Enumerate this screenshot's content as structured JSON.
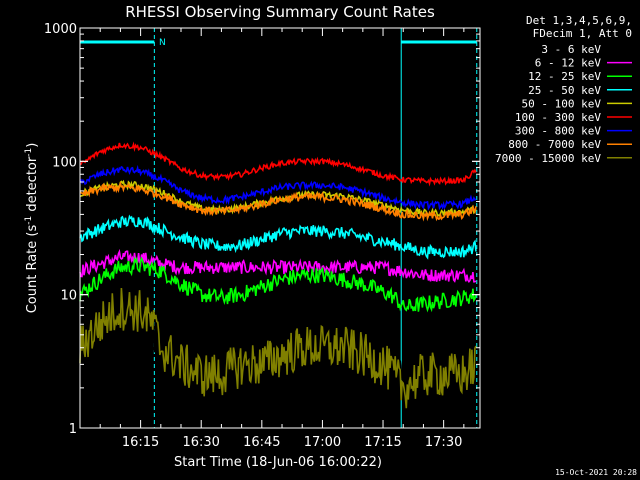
{
  "chart_data": {
    "type": "line",
    "title": "RHESSI Observing Summary Count Rates",
    "xlabel": "Start Time (18-Jun-06 16:00:22)",
    "ylabel_main": "Count Rate (s",
    "ylabel_sup1": "-1",
    "ylabel_mid": " detector",
    "ylabel_sup2": "-1",
    "ylabel_end": ")",
    "yscale": "log",
    "ylim": [
      1,
      1000
    ],
    "xlim_minutes": [
      0,
      99
    ],
    "xtick_minutes": [
      15,
      30,
      45,
      60,
      75,
      90
    ],
    "xtick_labels": [
      "16:15",
      "16:30",
      "16:45",
      "17:00",
      "17:15",
      "17:30"
    ],
    "ytick_values": [
      1,
      10,
      100,
      1000
    ],
    "ytick_labels": [
      "1",
      "10",
      "100",
      "1000"
    ],
    "legend_header": [
      "Det 1,3,4,5,6,9,",
      "FDecim 1, Att 0"
    ],
    "legend_placement": "right",
    "flag_label": "N",
    "night_intervals_minutes": [
      [
        0,
        18.4
      ],
      [
        79.5,
        98.2
      ]
    ],
    "series": [
      {
        "name": "3 - 6 keV",
        "color": "#000000",
        "x": [
          0,
          5,
          10,
          15,
          18,
          20,
          25,
          30,
          35,
          40,
          45,
          50,
          55,
          60,
          65,
          70,
          75,
          80,
          85,
          90,
          95,
          98
        ],
        "y": [
          4.5,
          6,
          7.5,
          7.5,
          6,
          4,
          3,
          2.5,
          3,
          3,
          3,
          4,
          4.5,
          4.5,
          4.5,
          3.5,
          3,
          2,
          2.5,
          2.5,
          2.5,
          3
        ]
      },
      {
        "name": "6 - 12 keV",
        "color": "#ff00ff",
        "x": [
          0,
          5,
          10,
          15,
          20,
          25,
          30,
          35,
          40,
          45,
          50,
          55,
          60,
          65,
          70,
          75,
          80,
          85,
          90,
          95,
          98
        ],
        "y": [
          15,
          17,
          19,
          19,
          17,
          16,
          16,
          16,
          16,
          16,
          16,
          16,
          16,
          16,
          16,
          16,
          15,
          14,
          14,
          14,
          14
        ]
      },
      {
        "name": "12 - 25 keV",
        "color": "#00ff00",
        "x": [
          0,
          5,
          10,
          15,
          20,
          25,
          30,
          35,
          40,
          45,
          50,
          55,
          60,
          65,
          70,
          75,
          78,
          80,
          85,
          90,
          95,
          98
        ],
        "y": [
          10,
          13,
          16,
          16.5,
          15,
          12,
          10,
          9.5,
          10,
          11.5,
          13,
          14,
          14,
          13,
          12,
          10.5,
          9.5,
          8,
          8.5,
          9,
          9.5,
          10
        ]
      },
      {
        "name": "25 - 50 keV",
        "color": "#00ffff",
        "x": [
          0,
          5,
          10,
          15,
          20,
          25,
          30,
          35,
          40,
          45,
          50,
          55,
          60,
          65,
          70,
          75,
          80,
          85,
          90,
          95,
          98
        ],
        "y": [
          27,
          31,
          35,
          36,
          31,
          27,
          24,
          23,
          23.5,
          26,
          29,
          30,
          30,
          29,
          27,
          25,
          23,
          21,
          21,
          21,
          23
        ]
      },
      {
        "name": "50 - 100 keV",
        "color": "#cccc00",
        "x": [
          0,
          5,
          10,
          15,
          20,
          25,
          30,
          35,
          40,
          45,
          50,
          55,
          60,
          65,
          70,
          75,
          80,
          85,
          90,
          95,
          98
        ],
        "y": [
          57,
          63,
          67,
          66,
          59,
          50,
          44,
          43,
          45,
          49,
          53,
          56,
          56,
          55,
          51,
          47,
          43,
          41,
          41,
          42,
          44
        ]
      },
      {
        "name": "100 - 300 keV",
        "color": "#ff0000",
        "x": [
          0,
          5,
          10,
          15,
          20,
          25,
          30,
          35,
          40,
          45,
          50,
          55,
          60,
          65,
          70,
          75,
          80,
          85,
          90,
          95,
          98
        ],
        "y": [
          93,
          118,
          133,
          127,
          108,
          88,
          78,
          76,
          80,
          89,
          97,
          100,
          100,
          95,
          87,
          78,
          73,
          71,
          71,
          72,
          85
        ]
      },
      {
        "name": "300 - 800 keV",
        "color": "#0000ff",
        "x": [
          0,
          5,
          10,
          15,
          20,
          25,
          30,
          35,
          40,
          45,
          50,
          55,
          60,
          65,
          70,
          75,
          80,
          85,
          90,
          95,
          98
        ],
        "y": [
          68,
          80,
          87,
          84,
          73,
          60,
          53,
          51,
          54,
          59,
          64,
          66,
          66,
          64,
          59,
          53,
          49,
          47,
          47,
          48,
          54
        ]
      },
      {
        "name": "800 - 7000 keV",
        "color": "#ff8000",
        "x": [
          0,
          5,
          10,
          15,
          20,
          25,
          30,
          35,
          40,
          45,
          50,
          55,
          60,
          65,
          70,
          75,
          80,
          85,
          90,
          95,
          98
        ],
        "y": [
          55,
          62,
          64,
          62,
          56,
          48,
          43,
          42,
          44,
          48,
          52,
          54,
          54,
          52,
          48,
          44,
          40,
          39,
          39,
          40,
          44
        ]
      },
      {
        "name": "7000 - 15000 keV",
        "color": "#808000",
        "x": [
          0,
          5,
          10,
          15,
          18,
          20,
          25,
          30,
          35,
          40,
          45,
          50,
          55,
          60,
          65,
          70,
          75,
          80,
          85,
          90,
          95,
          98
        ],
        "y": [
          4,
          6,
          8,
          7.5,
          6,
          4,
          3,
          2.5,
          2.5,
          3,
          3,
          3.5,
          4,
          4,
          4,
          3.5,
          3,
          2,
          2.5,
          2.5,
          2.5,
          3
        ]
      }
    ],
    "footer_date": "15-Oct-2021 20:28"
  }
}
